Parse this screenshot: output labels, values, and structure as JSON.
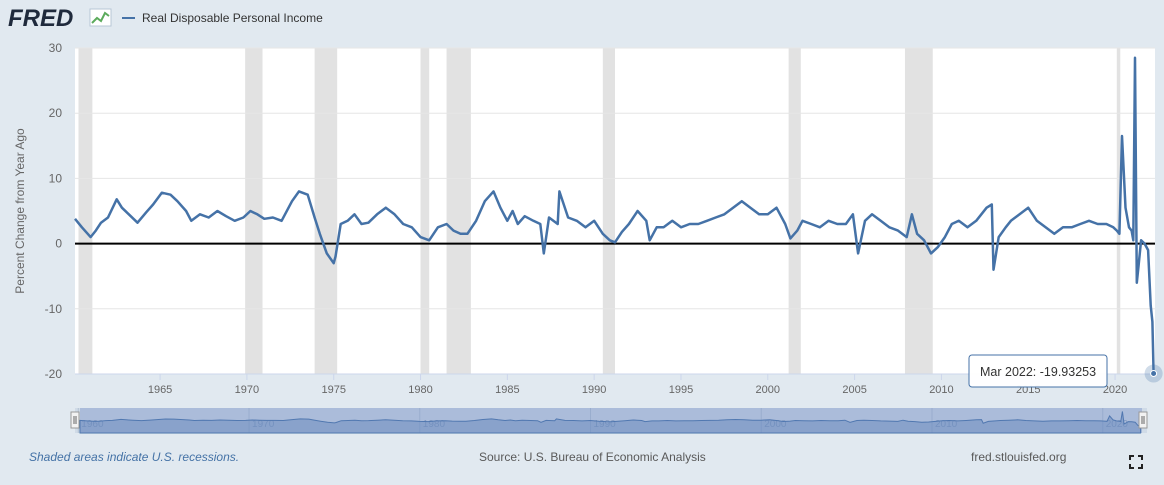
{
  "brand": {
    "logo_text": "FRED"
  },
  "legend": {
    "series_label": "Real Disposable Personal Income",
    "color": "#4572a7"
  },
  "footer": {
    "recession_note": "Shaded areas indicate U.S. recessions.",
    "source": "Source: U.S. Bureau of Economic Analysis",
    "site": "fred.stlouisfed.org"
  },
  "tooltip": {
    "date": "Mar 2022:",
    "value": "-19.93253"
  },
  "icons": {
    "fullscreen": "fullscreen-icon",
    "logo_graph": "line-graph-icon"
  },
  "chart_data": {
    "type": "line",
    "ylabel": "Percent Change from Year Ago",
    "xlim": [
      1960.1,
      2022.3
    ],
    "ylim": [
      -20,
      30
    ],
    "y_ticks": [
      -20,
      -10,
      0,
      10,
      20,
      30
    ],
    "x_ticks": [
      1965,
      1970,
      1975,
      1980,
      1985,
      1990,
      1995,
      2000,
      2005,
      2010,
      2015,
      2020
    ],
    "navigator_ticks": [
      "1960",
      "1970",
      "1980",
      "1990",
      "2000",
      "2010",
      "2020"
    ],
    "grid": true,
    "zero_line": true,
    "recessions": [
      [
        1960.3,
        1961.1
      ],
      [
        1969.9,
        1970.9
      ],
      [
        1973.9,
        1975.2
      ],
      [
        1980.0,
        1980.5
      ],
      [
        1981.5,
        1982.9
      ],
      [
        1990.5,
        1991.2
      ],
      [
        2001.2,
        2001.9
      ],
      [
        2007.9,
        2009.5
      ],
      [
        2020.1,
        2020.3
      ]
    ],
    "series": [
      {
        "name": "Real Disposable Personal Income",
        "color": "#4572a7",
        "x": [
          1960.1,
          1960.5,
          1961.0,
          1961.3,
          1961.6,
          1962.0,
          1962.5,
          1962.8,
          1963.2,
          1963.7,
          1964.2,
          1964.6,
          1965.1,
          1965.6,
          1966.0,
          1966.5,
          1966.8,
          1967.3,
          1967.8,
          1968.3,
          1968.8,
          1969.3,
          1969.8,
          1970.2,
          1970.6,
          1971.0,
          1971.5,
          1972.0,
          1972.6,
          1973.0,
          1973.5,
          1973.9,
          1974.2,
          1974.6,
          1975.0,
          1975.1,
          1975.4,
          1975.8,
          1976.2,
          1976.6,
          1977.0,
          1977.5,
          1978.0,
          1978.5,
          1979.0,
          1979.5,
          1980.0,
          1980.5,
          1981.0,
          1981.5,
          1981.9,
          1982.3,
          1982.7,
          1983.2,
          1983.7,
          1984.2,
          1984.6,
          1985.0,
          1985.3,
          1985.6,
          1986.0,
          1986.5,
          1986.9,
          1987.1,
          1987.4,
          1987.9,
          1988.0,
          1988.5,
          1989.0,
          1989.5,
          1990.0,
          1990.5,
          1990.9,
          1991.2,
          1991.6,
          1992.0,
          1992.5,
          1993.0,
          1993.2,
          1993.6,
          1994.0,
          1994.5,
          1995.0,
          1995.5,
          1996.0,
          1996.5,
          1997.0,
          1997.5,
          1998.0,
          1998.5,
          1999.0,
          1999.5,
          2000.0,
          2000.5,
          2001.0,
          2001.3,
          2001.7,
          2002.0,
          2002.5,
          2003.0,
          2003.5,
          2004.0,
          2004.5,
          2004.9,
          2005.2,
          2005.6,
          2006.0,
          2006.5,
          2007.0,
          2007.5,
          2008.0,
          2008.3,
          2008.6,
          2009.0,
          2009.4,
          2009.8,
          2010.2,
          2010.6,
          2011.0,
          2011.5,
          2012.0,
          2012.6,
          2012.9,
          2013.0,
          2013.3,
          2013.7,
          2014.0,
          2014.5,
          2015.0,
          2015.5,
          2016.0,
          2016.5,
          2017.0,
          2017.5,
          2018.0,
          2018.5,
          2019.0,
          2019.5,
          2019.9,
          2020.1,
          2020.25,
          2020.4,
          2020.6,
          2020.8,
          2020.95,
          2021.05,
          2021.15,
          2021.25,
          2021.35,
          2021.5,
          2021.7,
          2021.9,
          2022.05,
          2022.15,
          2022.22
        ],
        "y": [
          3.8,
          2.5,
          1.0,
          2.0,
          3.2,
          4.0,
          6.8,
          5.5,
          4.5,
          3.2,
          4.8,
          6.0,
          7.8,
          7.5,
          6.5,
          5.0,
          3.5,
          4.5,
          4.0,
          5.0,
          4.2,
          3.5,
          4.0,
          5.0,
          4.5,
          3.8,
          4.0,
          3.5,
          6.5,
          8.0,
          7.5,
          4.0,
          1.5,
          -1.5,
          -3.0,
          -2.0,
          3.0,
          3.5,
          4.5,
          3.0,
          3.2,
          4.5,
          5.5,
          4.5,
          3.0,
          2.5,
          1.0,
          0.5,
          2.5,
          3.0,
          2.0,
          1.5,
          1.5,
          3.5,
          6.5,
          8.0,
          5.5,
          3.5,
          5.0,
          3.0,
          4.2,
          3.5,
          3.0,
          -1.5,
          4.0,
          3.0,
          8.0,
          4.0,
          3.5,
          2.5,
          3.5,
          1.5,
          0.5,
          0.2,
          1.8,
          3.0,
          5.0,
          3.5,
          0.5,
          2.5,
          2.5,
          3.5,
          2.5,
          3.0,
          3.0,
          3.5,
          4.0,
          4.5,
          5.5,
          6.5,
          5.5,
          4.5,
          4.5,
          5.5,
          3.0,
          0.8,
          2.0,
          3.5,
          3.0,
          2.5,
          3.5,
          3.0,
          3.0,
          4.5,
          -1.5,
          3.5,
          4.5,
          3.5,
          2.5,
          2.0,
          1.0,
          4.5,
          1.5,
          0.5,
          -1.5,
          -0.5,
          1.0,
          3.0,
          3.5,
          2.5,
          3.5,
          5.5,
          6.0,
          -4.0,
          1.0,
          2.5,
          3.5,
          4.5,
          5.5,
          3.5,
          2.5,
          1.5,
          2.5,
          2.5,
          3.0,
          3.5,
          3.0,
          3.0,
          2.5,
          2.0,
          1.5,
          16.5,
          5.5,
          2.5,
          2.0,
          0.5,
          28.5,
          -6.0,
          -3.5,
          0.5,
          0.0,
          -1.0,
          -9.5,
          -12.0,
          -19.93
        ]
      }
    ]
  }
}
